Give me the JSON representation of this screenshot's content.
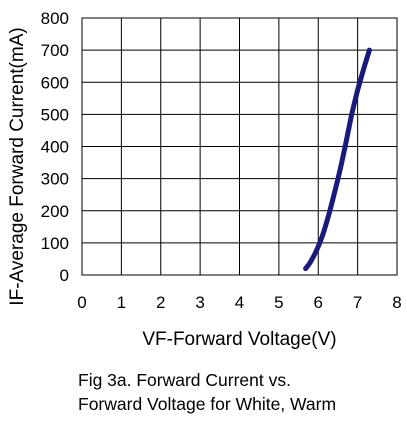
{
  "chart_data": {
    "type": "line",
    "title": "",
    "xlabel": "VF-Forward Voltage(V)",
    "ylabel": "IF-Average Forward Current(mA)",
    "xlim": [
      0,
      8
    ],
    "ylim": [
      0,
      800
    ],
    "x_ticks": [
      "0",
      "1",
      "2",
      "3",
      "4",
      "5",
      "6",
      "7",
      "8"
    ],
    "y_ticks": [
      "0",
      "100",
      "200",
      "300",
      "400",
      "500",
      "600",
      "700",
      "800"
    ],
    "grid": true,
    "legend": "none",
    "series": [
      {
        "name": "",
        "color": "#1a1a7a",
        "x": [
          5.68,
          5.8,
          5.95,
          6.1,
          6.25,
          6.4,
          6.55,
          6.7,
          6.85,
          7.0,
          7.15,
          7.3
        ],
        "y": [
          20,
          40,
          75,
          120,
          180,
          250,
          325,
          410,
          500,
          575,
          640,
          700
        ]
      }
    ]
  },
  "caption": {
    "line1": "Fig 3a. Forward Current vs.",
    "line2": "Forward Voltage for White, Warm"
  }
}
